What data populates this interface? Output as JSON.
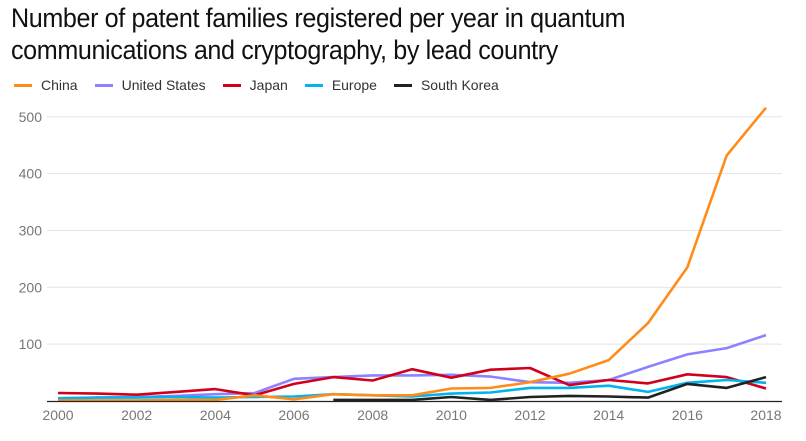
{
  "chart_data": {
    "type": "line",
    "title": "Number of patent families registered per year in quantum communications and cryptography, by lead country",
    "xlabel": "",
    "ylabel": "",
    "x": [
      2000,
      2001,
      2002,
      2003,
      2004,
      2005,
      2006,
      2007,
      2008,
      2009,
      2010,
      2011,
      2012,
      2013,
      2014,
      2015,
      2016,
      2017,
      2018
    ],
    "x_ticks": [
      "2000",
      "2002",
      "2004",
      "2006",
      "2008",
      "2010",
      "2012",
      "2014",
      "2016",
      "2018"
    ],
    "y_ticks": [
      "100",
      "200",
      "300",
      "400",
      "500"
    ],
    "ylim": [
      0,
      520
    ],
    "xlim": [
      2000,
      2018
    ],
    "grid": true,
    "legend_position": "top-left",
    "series": [
      {
        "name": "China",
        "color": "#ff8c1a",
        "values": [
          1,
          1,
          1,
          2,
          2,
          10,
          3,
          12,
          10,
          10,
          22,
          23,
          33,
          48,
          72,
          137,
          235,
          432,
          516
        ]
      },
      {
        "name": "United States",
        "color": "#8c82ff",
        "values": [
          3,
          6,
          7,
          9,
          12,
          14,
          39,
          42,
          45,
          45,
          46,
          43,
          33,
          32,
          37,
          60,
          82,
          93,
          116
        ]
      },
      {
        "name": "Japan",
        "color": "#d0021b",
        "values": [
          14,
          13,
          11,
          16,
          21,
          10,
          30,
          42,
          36,
          56,
          41,
          55,
          58,
          28,
          37,
          31,
          47,
          42,
          22
        ]
      },
      {
        "name": "Europe",
        "color": "#00b4f0",
        "values": [
          5,
          6,
          6,
          7,
          6,
          7,
          8,
          12,
          10,
          8,
          13,
          15,
          23,
          23,
          27,
          16,
          32,
          37,
          32
        ]
      },
      {
        "name": "South Korea",
        "color": "#222222",
        "values": [
          null,
          null,
          null,
          null,
          null,
          null,
          null,
          2,
          2,
          2,
          7,
          2,
          7,
          9,
          8,
          6,
          30,
          23,
          42
        ]
      }
    ]
  }
}
